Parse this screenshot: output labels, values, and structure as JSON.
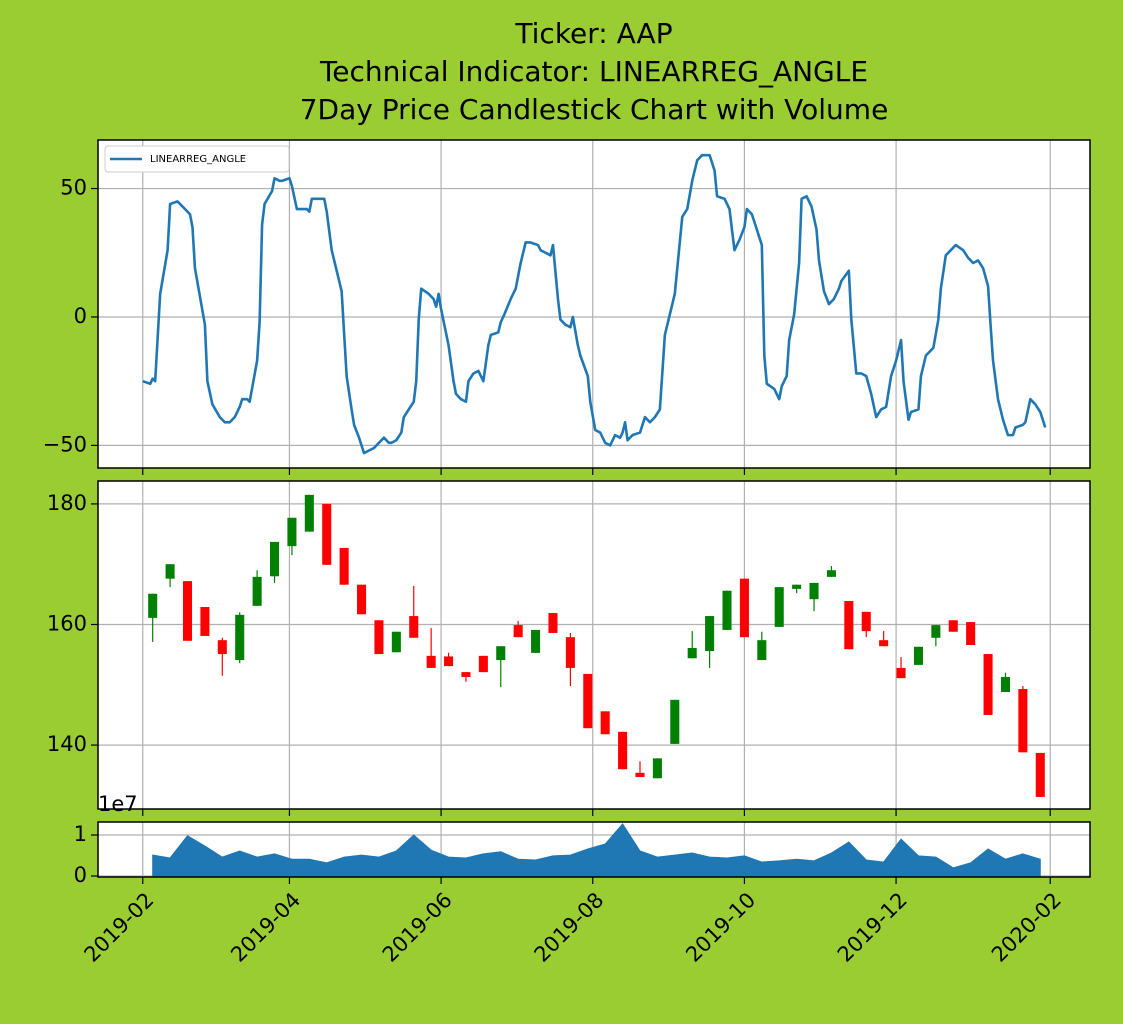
{
  "title": [
    "Ticker: AAP",
    "Technical Indicator: LINEARREG_ANGLE",
    "7Day Price Candlestick Chart with Volume"
  ],
  "x_axis": {
    "xlim": [
      17910,
      18309
    ],
    "xticks": [
      {
        "value": 17928,
        "label": "2019-02"
      },
      {
        "value": 17987,
        "label": "2019-04"
      },
      {
        "value": 18048,
        "label": "2019-06"
      },
      {
        "value": 18109,
        "label": "2019-08"
      },
      {
        "value": 18170,
        "label": "2019-10"
      },
      {
        "value": 18231,
        "label": "2019-12"
      },
      {
        "value": 18293,
        "label": "2020-02"
      }
    ]
  },
  "chart_data": [
    {
      "type": "line",
      "ylim": [
        -58.8,
        68.9
      ],
      "yticks": [
        {
          "value": -50,
          "label": "−50"
        },
        0,
        50
      ],
      "grid": true,
      "legend": "upper left",
      "x": [
        17928,
        17931,
        17932,
        17933,
        17935,
        17938,
        17939,
        17942,
        17944,
        17947,
        17948,
        17949,
        17953,
        17954,
        17956,
        17959,
        17961,
        17963,
        17965,
        17967,
        17968,
        17970,
        17971,
        17974,
        17975,
        17976,
        17977,
        17980,
        17981,
        17983,
        17984,
        17987,
        17988,
        17990,
        17994,
        17995,
        17996,
        17998,
        18001,
        18002,
        18004,
        18006,
        18008,
        18010,
        18012,
        18013,
        18015,
        18017,
        18019,
        18021,
        18023,
        18025,
        18027,
        18028,
        18030,
        18032,
        18033,
        18035,
        18037,
        18038,
        18039,
        18040,
        18043,
        18045,
        18046,
        18047,
        18048,
        18051,
        18053,
        18054,
        18056,
        18058,
        18059,
        18061,
        18063,
        18065,
        18067,
        18068,
        18071,
        18072,
        18073,
        18076,
        18078,
        18080,
        18082,
        18084,
        18087,
        18088,
        18090,
        18092,
        18093,
        18095,
        18096,
        18098,
        18100,
        18101,
        18103,
        18104,
        18107,
        18108,
        18110,
        18112,
        18114,
        18116,
        18118,
        18120,
        18121,
        18122,
        18123,
        18125,
        18128,
        18130,
        18132,
        18134,
        18136,
        18138,
        18140,
        18142,
        18145,
        18147,
        18149,
        18151,
        18153,
        18156,
        18158,
        18159,
        18162,
        18164,
        18166,
        18168,
        18170,
        18171,
        18173,
        18175,
        18177,
        18178,
        18179,
        18182,
        18184,
        18185,
        18187,
        18188,
        18190,
        18192,
        18193,
        18195,
        18197,
        18199,
        18200,
        18202,
        18204,
        18206,
        18208,
        18209,
        18212,
        18213,
        18215,
        18217,
        18219,
        18221,
        18223,
        18225,
        18227,
        18229,
        18231,
        18233,
        18234,
        18236,
        18237,
        18240,
        18241,
        18243,
        18246,
        18248,
        18249,
        18251,
        18255,
        18258,
        18260,
        18262,
        18264,
        18266,
        18268,
        18269,
        18270,
        18272,
        18274,
        18276,
        18278,
        18279,
        18282,
        18283,
        18285,
        18287,
        18289,
        18291
      ],
      "series": [
        {
          "name": "LINEARREG_ANGLE",
          "color": "#1f77b4",
          "values": [
            -25,
            -26,
            -24,
            -25,
            9,
            26,
            44,
            45,
            43,
            40,
            35,
            19,
            -3,
            -25,
            -34,
            -39,
            -41,
            -41,
            -39,
            -35,
            -32,
            -32,
            -33,
            -17,
            -2,
            36,
            44,
            49,
            54,
            53,
            53,
            54,
            51,
            42,
            42,
            41,
            46,
            46,
            46,
            41,
            26,
            18,
            10,
            -23,
            -36,
            -42,
            -47,
            -53,
            -52,
            -51,
            -49,
            -47,
            -49,
            -49,
            -48,
            -45,
            -39,
            -36,
            -33,
            -25,
            -1,
            11,
            9,
            7,
            4,
            9,
            3,
            -11,
            -25,
            -30,
            -32,
            -33,
            -25,
            -22,
            -21,
            -25,
            -11,
            -7,
            -6,
            -2,
            0,
            7,
            11,
            21,
            29,
            29,
            28,
            26,
            25,
            24,
            28,
            7,
            -1,
            -3,
            -4,
            0,
            -11,
            -15,
            -23,
            -33,
            -44,
            -45,
            -49,
            -50,
            -46,
            -47,
            -45,
            -41,
            -48,
            -46,
            -45,
            -39,
            -41,
            -39,
            -36,
            -7,
            1,
            9,
            39,
            42,
            53,
            61,
            63,
            63,
            57,
            47,
            46,
            42,
            26,
            30,
            35,
            42,
            40,
            34,
            28,
            -15,
            -26,
            -28,
            -32,
            -27,
            -23,
            -9,
            1,
            21,
            46,
            47,
            43,
            34,
            22,
            10,
            5,
            7,
            11,
            14,
            18,
            -1,
            -22,
            -22,
            -23,
            -30,
            -39,
            -36,
            -35,
            -23,
            -17,
            -9,
            -25,
            -40,
            -37,
            -36,
            -23,
            -15,
            -12,
            -1,
            11,
            24,
            28,
            26,
            23,
            21,
            22,
            19,
            12,
            -3,
            -17,
            -32,
            -40,
            -46,
            -46,
            -43,
            -42,
            -41,
            -32,
            -34,
            -37,
            -43
          ]
        }
      ]
    },
    {
      "type": "candlestick",
      "ylim": [
        129.4,
        183.8
      ],
      "yticks": [
        140,
        160,
        180
      ],
      "grid": true,
      "up_color": "#008000",
      "down_color": "#ff0000",
      "x": [
        17932,
        17939,
        17946,
        17953,
        17960,
        17967,
        17974,
        17981,
        17988,
        17995,
        18002,
        18009,
        18016,
        18023,
        18030,
        18037,
        18044,
        18051,
        18058,
        18065,
        18072,
        18079,
        18086,
        18093,
        18100,
        18107,
        18114,
        18121,
        18128,
        18135,
        18142,
        18149,
        18156,
        18163,
        18170,
        18177,
        18184,
        18191,
        18198,
        18205,
        18212,
        18219,
        18226,
        18233,
        18240,
        18247,
        18254,
        18261,
        18268,
        18275,
        18282,
        18289
      ],
      "open": [
        161.1,
        167.6,
        167.2,
        162.9,
        157.4,
        154.1,
        163.1,
        168,
        173,
        175.4,
        180,
        172.7,
        166.6,
        160.7,
        155.4,
        161.4,
        154.8,
        154.7,
        152.1,
        154.8,
        154.1,
        159.9,
        155.3,
        161.9,
        157.9,
        151.8,
        145.6,
        142.2,
        135.4,
        134.5,
        140.2,
        154.4,
        155.6,
        159.1,
        167.6,
        154.1,
        159.6,
        165.9,
        164.2,
        167.9,
        163.9,
        162.1,
        157.4,
        152.8,
        153.3,
        157.8,
        160.7,
        160.4,
        155.1,
        148.8,
        149.3,
        138.7
      ],
      "high": [
        165.1,
        170,
        167.2,
        162.9,
        157.8,
        162,
        169,
        173.7,
        177.7,
        181.5,
        180,
        172.7,
        166.6,
        160.7,
        158.8,
        166.4,
        159.4,
        155.3,
        152.1,
        154.8,
        156.4,
        160.6,
        159.1,
        161.9,
        158.6,
        151.8,
        145.6,
        142.2,
        137.3,
        137.8,
        147.5,
        158.9,
        161.4,
        165.6,
        167.6,
        158.8,
        166.2,
        166.6,
        166.9,
        169.7,
        163.9,
        162.1,
        158.9,
        154.6,
        156.3,
        159.9,
        160.7,
        160.4,
        155.1,
        152,
        149.8,
        138.7
      ],
      "low": [
        157.1,
        166.2,
        157.3,
        158.1,
        151.5,
        153.6,
        163.1,
        166.9,
        171.5,
        175.4,
        169.9,
        166.6,
        161.7,
        155.1,
        155.4,
        157.8,
        152.8,
        153.1,
        150.5,
        152.1,
        149.6,
        157.9,
        155.3,
        158.6,
        149.8,
        142.8,
        141.8,
        136,
        134.7,
        134.5,
        140.2,
        154.4,
        152.8,
        159.1,
        157.9,
        154.1,
        159.6,
        165.2,
        162.2,
        167.9,
        155.9,
        157.9,
        156.4,
        151.1,
        153.3,
        156.4,
        158.8,
        156.6,
        145,
        148.8,
        138.8,
        131.4
      ],
      "close": [
        165.1,
        170,
        157.3,
        158.1,
        155.1,
        161.6,
        167.9,
        173.7,
        177.7,
        181.5,
        169.9,
        166.6,
        161.7,
        155.1,
        158.8,
        157.8,
        152.8,
        153.1,
        151.3,
        152.1,
        156.4,
        157.9,
        159.1,
        158.6,
        152.8,
        142.8,
        141.8,
        136,
        134.7,
        137.8,
        147.5,
        156.1,
        161.4,
        165.6,
        157.9,
        157.4,
        166.2,
        166.6,
        166.9,
        169,
        155.9,
        158.9,
        156.4,
        151.1,
        156.3,
        159.9,
        158.8,
        156.6,
        145,
        151.3,
        138.8,
        131.4
      ]
    },
    {
      "type": "area",
      "ylim": [
        -240000,
        13170000
      ],
      "yticks": [
        0,
        {
          "value": 10000000,
          "label": "1"
        }
      ],
      "grid": true,
      "offset_text": "1e7",
      "color": "#1f77b4",
      "x": [
        17932,
        17939,
        17946,
        17953,
        17960,
        17967,
        17974,
        17981,
        17988,
        17995,
        18002,
        18009,
        18016,
        18023,
        18030,
        18037,
        18044,
        18051,
        18058,
        18065,
        18072,
        18079,
        18086,
        18093,
        18100,
        18107,
        18114,
        18121,
        18128,
        18135,
        18142,
        18149,
        18156,
        18163,
        18170,
        18177,
        18184,
        18191,
        18198,
        18205,
        18212,
        18219,
        18226,
        18233,
        18240,
        18247,
        18254,
        18261,
        18268,
        18275,
        18282,
        18289
      ],
      "values": [
        5100000,
        4400000,
        9800000,
        7300000,
        4600000,
        6100000,
        4600000,
        5400000,
        4100000,
        4100000,
        3200000,
        4600000,
        5100000,
        4600000,
        6100000,
        10000000,
        6300000,
        4600000,
        4400000,
        5400000,
        5900000,
        4100000,
        3900000,
        4900000,
        5100000,
        6600000,
        7800000,
        12700000,
        6100000,
        4600000,
        5100000,
        5600000,
        4600000,
        4400000,
        4900000,
        3400000,
        3700000,
        4100000,
        3700000,
        5600000,
        8300000,
        3900000,
        3400000,
        9000000,
        4900000,
        4600000,
        2000000,
        3200000,
        6600000,
        4100000,
        5400000,
        4100000
      ]
    }
  ]
}
